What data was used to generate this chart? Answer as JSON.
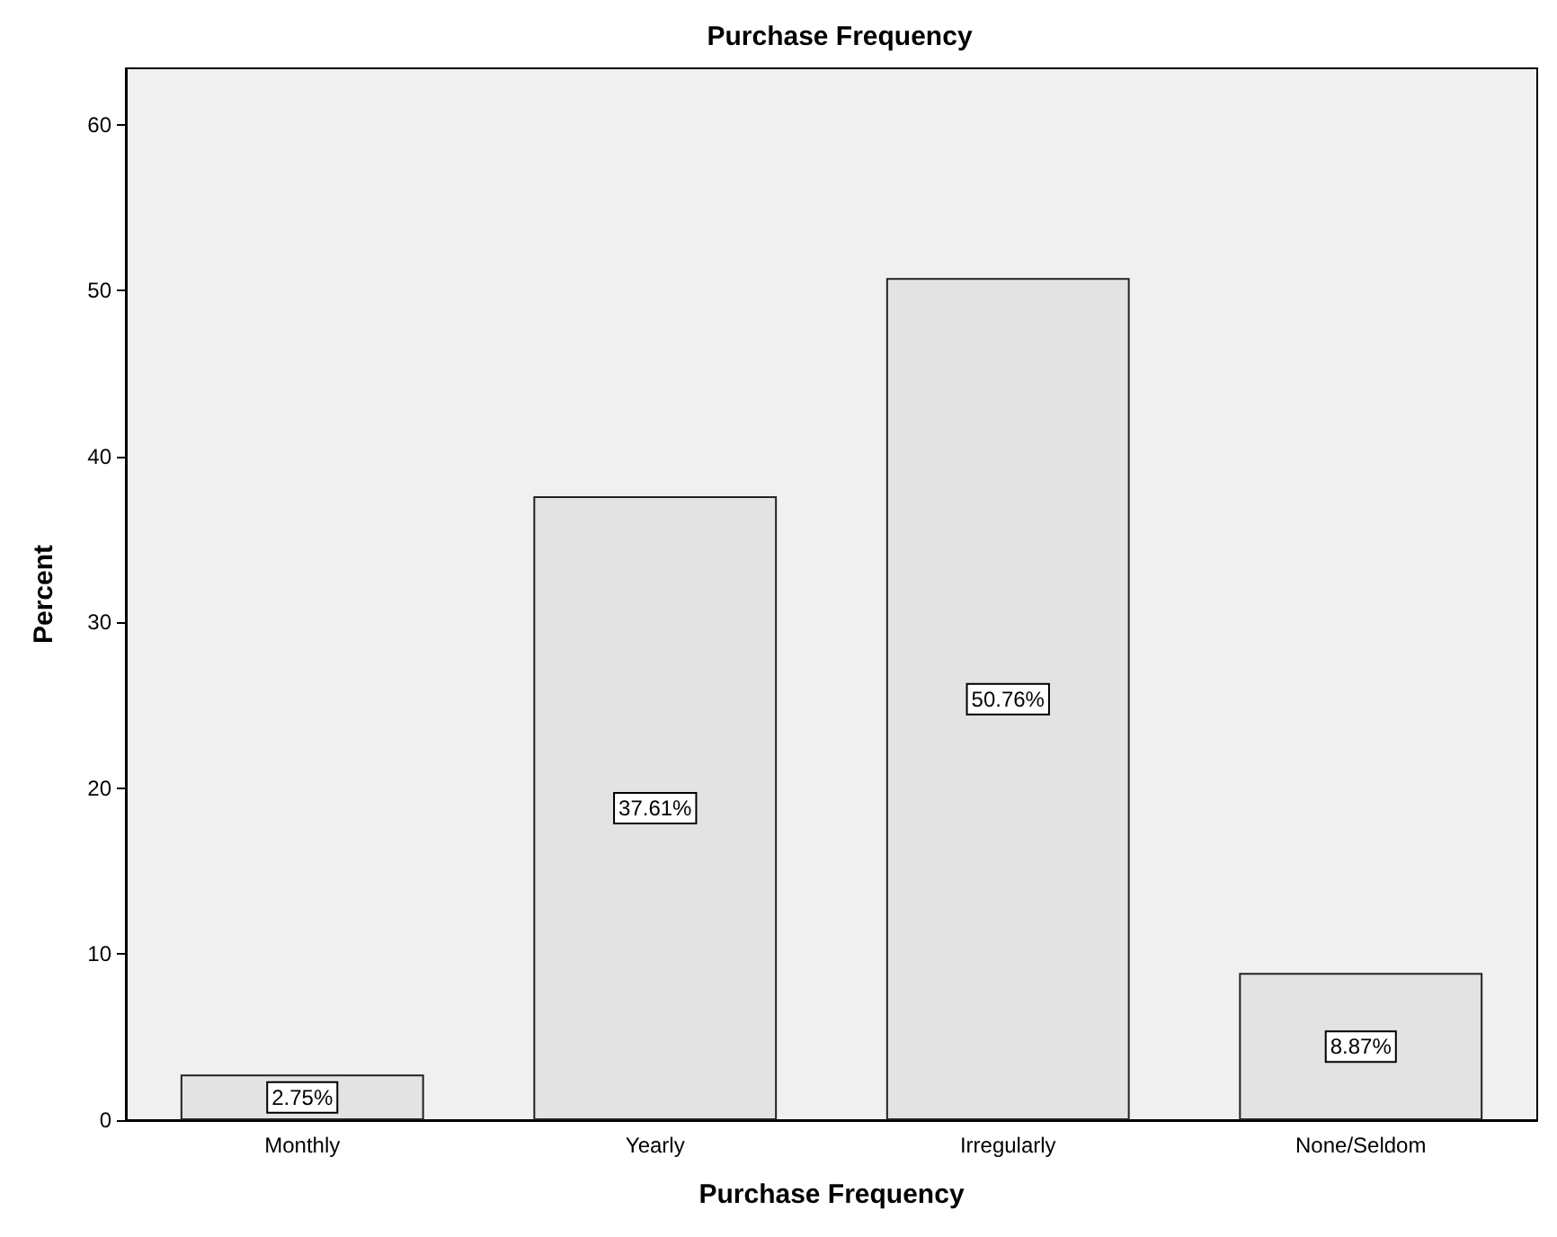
{
  "chart_data": {
    "type": "bar",
    "title": "Purchase Frequency",
    "xlabel": "Purchase Frequency",
    "ylabel": "Percent",
    "categories": [
      "Monthly",
      "Yearly",
      "Irregularly",
      "None/Seldom"
    ],
    "values": [
      2.75,
      37.61,
      50.76,
      8.87
    ],
    "value_labels": [
      "2.75%",
      "37.61%",
      "50.76%",
      "8.87%"
    ],
    "color": "#e3e3e3",
    "ylim": [
      0,
      63.4
    ],
    "yticks": [
      0,
      10,
      20,
      30,
      40,
      50,
      60
    ]
  }
}
